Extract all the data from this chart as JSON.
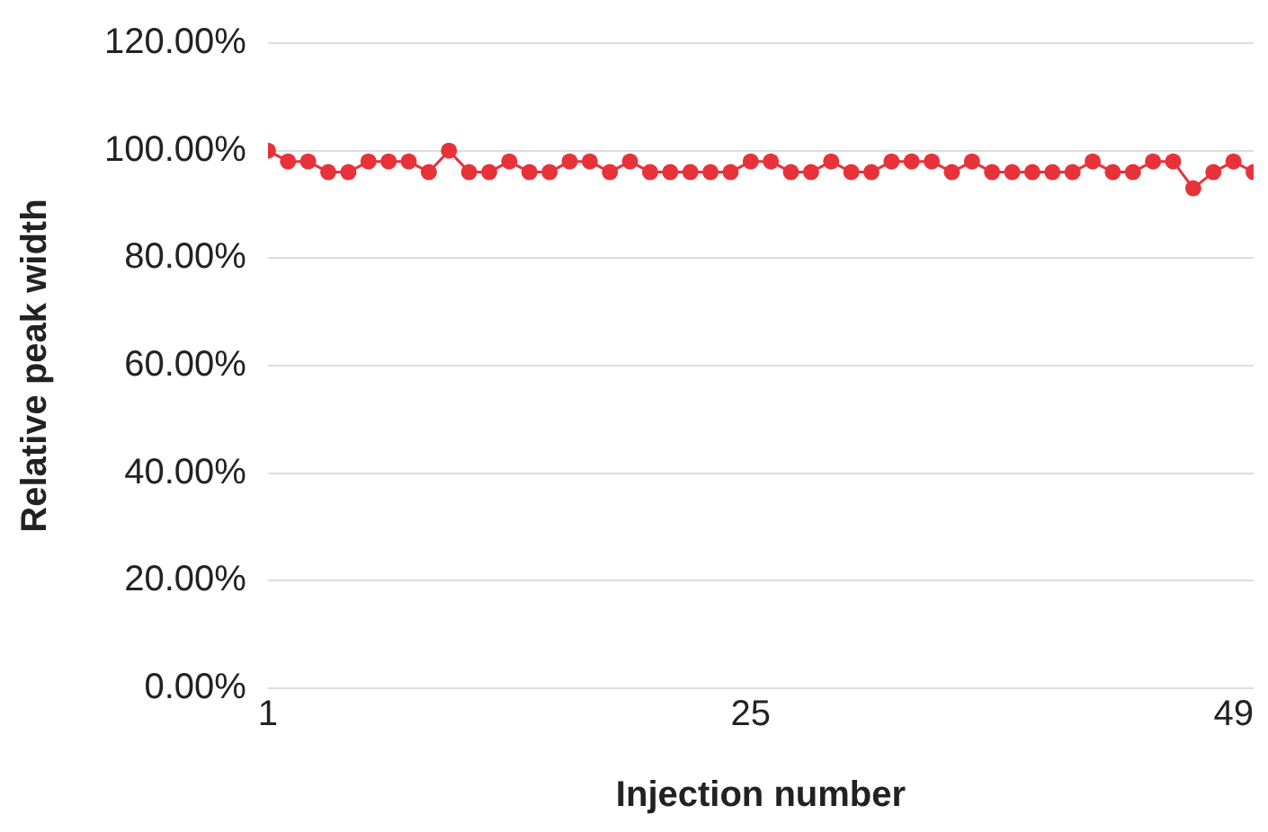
{
  "chart_data": {
    "type": "line",
    "xlabel": "Injection number",
    "ylabel": "Relative peak width",
    "x": [
      1,
      2,
      3,
      4,
      5,
      6,
      7,
      8,
      9,
      10,
      11,
      12,
      13,
      14,
      15,
      16,
      17,
      18,
      19,
      20,
      21,
      22,
      23,
      24,
      25,
      26,
      27,
      28,
      29,
      30,
      31,
      32,
      33,
      34,
      35,
      36,
      37,
      38,
      39,
      40,
      41,
      42,
      43,
      44,
      45,
      46,
      47,
      48,
      49,
      50
    ],
    "series": [
      {
        "color": "#e8323a",
        "values": [
          100,
          98,
          98,
          96,
          96,
          98,
          98,
          98,
          96,
          100,
          96,
          96,
          98,
          96,
          96,
          98,
          98,
          96,
          98,
          96,
          96,
          96,
          96,
          96,
          98,
          98,
          96,
          96,
          98,
          96,
          96,
          98,
          98,
          98,
          96,
          98,
          96,
          96,
          96,
          96,
          96,
          98,
          96,
          96,
          98,
          98,
          93,
          96,
          98,
          96
        ]
      }
    ],
    "xlim": [
      1,
      50
    ],
    "xticks": [
      1,
      25,
      49
    ],
    "ylim": [
      0,
      120
    ],
    "yticks": [
      {
        "value": 0,
        "label": "0.00%"
      },
      {
        "value": 20,
        "label": "20.00%"
      },
      {
        "value": 40,
        "label": "40.00%"
      },
      {
        "value": 60,
        "label": "60.00%"
      },
      {
        "value": 80,
        "label": "80.00%"
      },
      {
        "value": 100,
        "label": "100.00%"
      },
      {
        "value": 120,
        "label": "120.00%"
      }
    ],
    "grid": "y",
    "legend": false,
    "marker": "circle",
    "line_style": "solid"
  }
}
